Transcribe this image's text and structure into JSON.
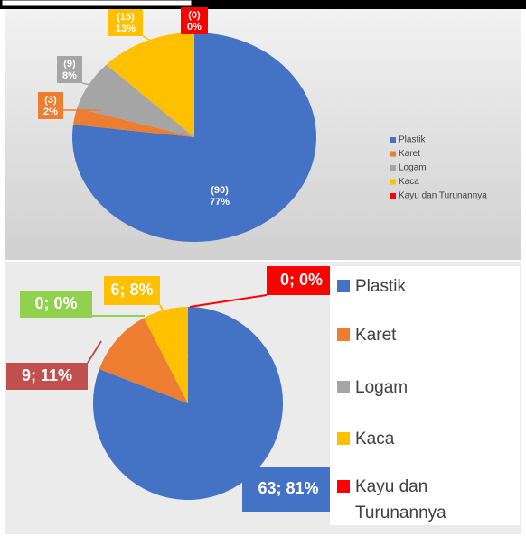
{
  "chart_data": [
    {
      "type": "pie",
      "categories": [
        "Plastik",
        "Karet",
        "Logam",
        "Kaca",
        "Kayu dan Turunannya"
      ],
      "values": [
        90,
        3,
        9,
        15,
        0
      ],
      "value_labels": [
        "(90)",
        "(3)",
        "(9)",
        "(15)",
        "(0)"
      ],
      "percents": [
        77,
        2,
        8,
        13,
        0
      ],
      "percent_labels": [
        "77%",
        "2%",
        "8%",
        "13%",
        "0%"
      ],
      "colors": [
        "#4472c4",
        "#ed7d31",
        "#a5a5a5",
        "#ffc000",
        "#ff0000"
      ],
      "legend": "right"
    },
    {
      "type": "pie",
      "categories": [
        "Plastik",
        "Karet",
        "Logam",
        "Kaca",
        "Kayu dan Turunannya"
      ],
      "values": [
        63,
        9,
        0,
        6,
        0
      ],
      "value_labels": [
        "63; 81%",
        "9; 11%",
        "0; 0%",
        "6; 8%",
        "0; 0%"
      ],
      "colors": [
        "#4472c4",
        "#ed7d31",
        "#a5a5a5",
        "#ffc000",
        "#ff0000"
      ],
      "label_colors": [
        "#4472c4",
        "#c0504d",
        "#92d050",
        "#ffc000",
        "#ff0000"
      ],
      "legend": "right"
    }
  ]
}
